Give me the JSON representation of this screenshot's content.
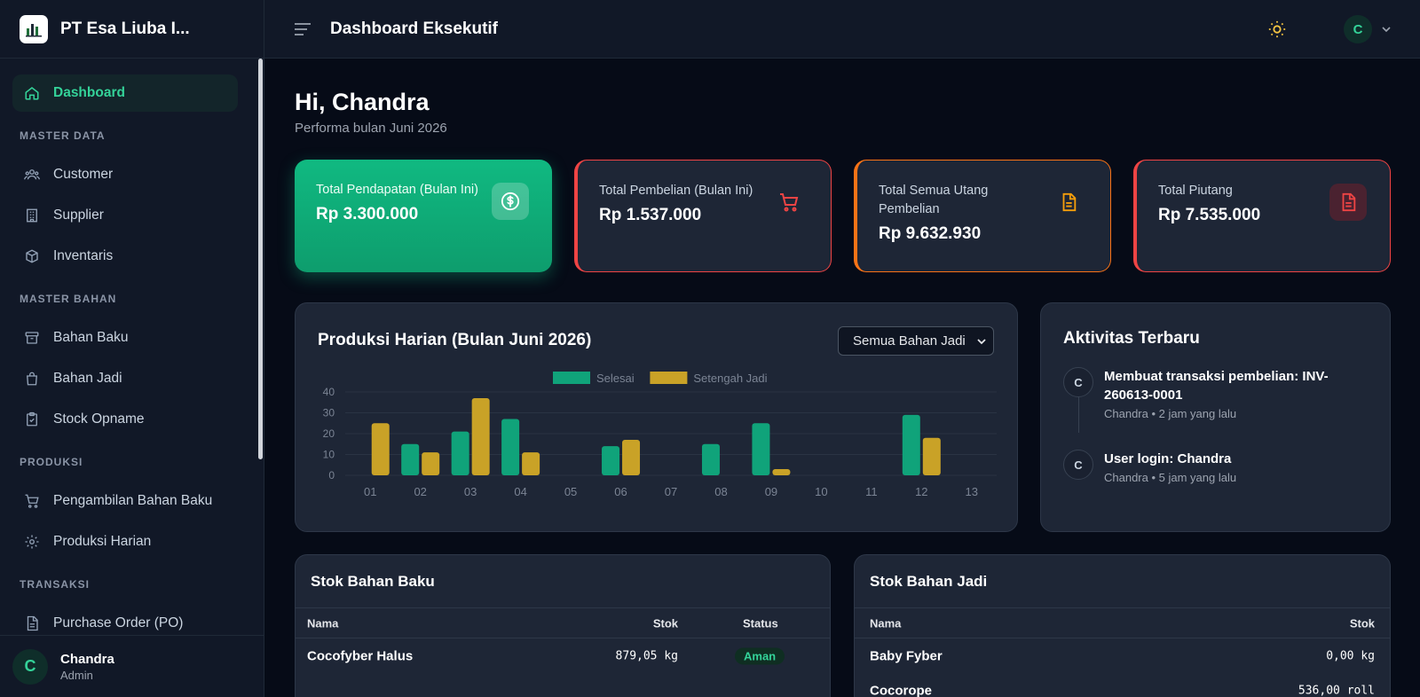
{
  "brand": {
    "name": "PT Esa Liuba I..."
  },
  "header": {
    "title": "Dashboard Eksekutif",
    "user_initial": "C"
  },
  "sidebar": {
    "dashboard": "Dashboard",
    "sections": [
      {
        "label": "MASTER DATA",
        "items": [
          "Customer",
          "Supplier",
          "Inventaris"
        ]
      },
      {
        "label": "MASTER BAHAN",
        "items": [
          "Bahan Baku",
          "Bahan Jadi",
          "Stock Opname"
        ]
      },
      {
        "label": "PRODUKSI",
        "items": [
          "Pengambilan Bahan Baku",
          "Produksi Harian"
        ]
      },
      {
        "label": "TRANSAKSI",
        "items": [
          "Purchase Order (PO)"
        ]
      }
    ],
    "user": {
      "initial": "C",
      "name": "Chandra",
      "role": "Admin"
    }
  },
  "greeting": {
    "title": "Hi, Chandra",
    "subtitle": "Performa bulan Juni 2026"
  },
  "cards": [
    {
      "label": "Total Pendapatan (Bulan Ini)",
      "value": "Rp 3.300.000",
      "icon": "dollar-icon"
    },
    {
      "label": "Total Pembelian (Bulan Ini)",
      "value": "Rp 1.537.000",
      "icon": "cart-icon"
    },
    {
      "label": "Total Semua Utang Pembelian",
      "value": "Rp 9.632.930",
      "icon": "document-icon"
    },
    {
      "label": "Total Piutang",
      "value": "Rp 7.535.000",
      "icon": "document-icon"
    }
  ],
  "chart_panel": {
    "title": "Produksi Harian (Bulan Juni 2026)",
    "filter": "Semua Bahan Jadi"
  },
  "chart_data": {
    "type": "bar",
    "categories": [
      "01",
      "02",
      "03",
      "04",
      "05",
      "06",
      "07",
      "08",
      "09",
      "10",
      "11",
      "12",
      "13"
    ],
    "series": [
      {
        "name": "Selesai",
        "color": "#10a37a",
        "values": [
          0,
          15,
          21,
          27,
          0,
          14,
          0,
          15,
          25,
          0,
          0,
          29,
          0
        ]
      },
      {
        "name": "Setengah Jadi",
        "color": "#c9a227",
        "values": [
          25,
          11,
          37,
          11,
          0,
          17,
          0,
          0,
          3,
          0,
          0,
          18,
          0
        ]
      }
    ],
    "yticks": [
      0,
      10,
      20,
      30,
      40
    ],
    "ylim": [
      0,
      40
    ],
    "legend": "top-center"
  },
  "activity": {
    "title": "Aktivitas Terbaru",
    "items": [
      {
        "initial": "C",
        "text": "Membuat transaksi pembelian: INV-260613-0001",
        "meta": "Chandra • 2 jam yang lalu"
      },
      {
        "initial": "C",
        "text": "User login: Chandra",
        "meta": "Chandra • 5 jam yang lalu"
      }
    ]
  },
  "stok_baku": {
    "title": "Stok Bahan Baku",
    "headers": {
      "name": "Nama",
      "stock": "Stok",
      "status": "Status"
    },
    "rows": [
      {
        "name": "Cocofyber Halus",
        "stock": "879,05 kg",
        "status": "Aman"
      }
    ]
  },
  "stok_jadi": {
    "title": "Stok Bahan Jadi",
    "headers": {
      "name": "Nama",
      "stock": "Stok"
    },
    "rows": [
      {
        "name": "Baby Fyber",
        "stock": "0,00 kg"
      },
      {
        "name": "Cocorope",
        "stock": "536,00 roll"
      }
    ]
  }
}
